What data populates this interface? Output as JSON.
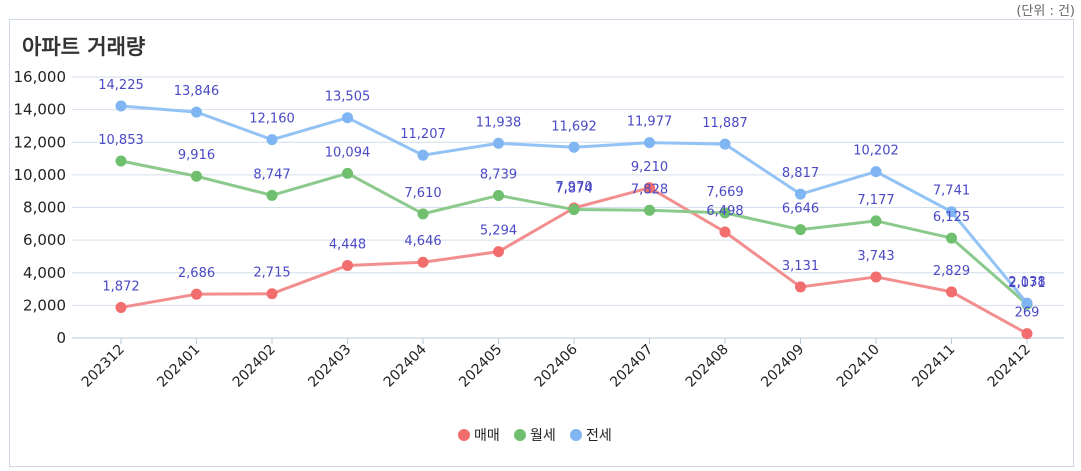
{
  "unit_label": "(단위 : 건)",
  "chart_data": {
    "type": "line",
    "title": "아파트 거래량",
    "xlabel": "",
    "ylabel": "",
    "ylim": [
      0,
      16000
    ],
    "yticks": [
      "0",
      "2,000",
      "4,000",
      "6,000",
      "8,000",
      "10,000",
      "12,000",
      "14,000",
      "16,000"
    ],
    "grid": true,
    "legend_position": "bottom-center",
    "categories": [
      "202312",
      "202401",
      "202402",
      "202403",
      "202404",
      "202405",
      "202406",
      "202407",
      "202408",
      "202409",
      "202410",
      "202411",
      "202412"
    ],
    "series": [
      {
        "name": "매매",
        "color": "#f28e8e",
        "marker_color": "#f26d6d",
        "values": [
          1872,
          2686,
          2715,
          4448,
          4646,
          5294,
          7970,
          9210,
          6498,
          3131,
          3743,
          2829,
          269
        ],
        "labels": [
          "1,872",
          "2,686",
          "2,715",
          "4,448",
          "4,646",
          "5,294",
          "7,970",
          "9,210",
          "6,498",
          "3,131",
          "3,743",
          "2,829",
          "269"
        ]
      },
      {
        "name": "월세",
        "color": "#8cc98c",
        "marker_color": "#6fbf6f",
        "values": [
          10853,
          9916,
          8747,
          10094,
          7610,
          8739,
          7874,
          7828,
          7669,
          6646,
          7177,
          6125,
          2071
        ],
        "labels": [
          "10,853",
          "9,916",
          "8,747",
          "10,094",
          "7,610",
          "8,739",
          "7,874",
          "7,828",
          "7,669",
          "6,646",
          "7,177",
          "6,125",
          "2,071"
        ]
      },
      {
        "name": "전세",
        "color": "#93c3f5",
        "marker_color": "#7fb5f3",
        "values": [
          14225,
          13846,
          12160,
          13505,
          11207,
          11938,
          11692,
          11977,
          11887,
          8817,
          10202,
          7741,
          2138
        ],
        "labels": [
          "14,225",
          "13,846",
          "12,160",
          "13,505",
          "11,207",
          "11,938",
          "11,692",
          "11,977",
          "11,887",
          "8,817",
          "10,202",
          "7,741",
          "2,138"
        ]
      }
    ]
  }
}
